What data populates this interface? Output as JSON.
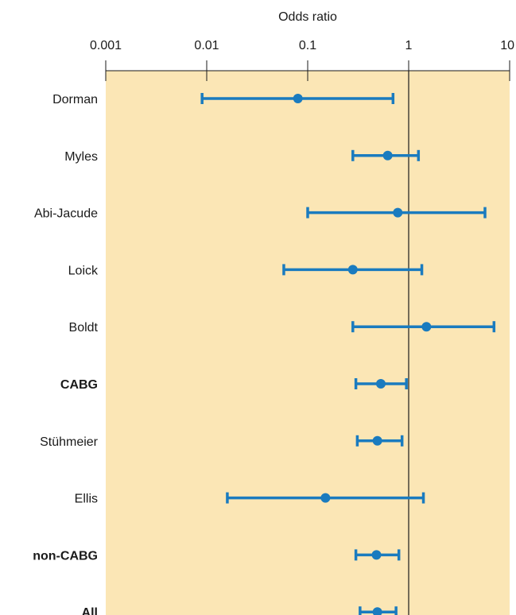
{
  "chart_data": {
    "type": "forest",
    "title": "",
    "xlabel": "Odds ratio",
    "ylabel": "",
    "x_scale": "log",
    "xlim": [
      0.001,
      10
    ],
    "x_ticks": [
      {
        "value": 0.001,
        "label": "0.001"
      },
      {
        "value": 0.01,
        "label": "0.01"
      },
      {
        "value": 0.1,
        "label": "0.1"
      },
      {
        "value": 1,
        "label": "1"
      },
      {
        "value": 10,
        "label": "10"
      }
    ],
    "reference_line": 1,
    "colors": {
      "panel": "#fbe6b5",
      "marker": "#1a7bbf",
      "axis": "#1a1a1a"
    },
    "rows": [
      {
        "label": "Dorman",
        "bold": false,
        "estimate": 0.08,
        "lower": 0.009,
        "upper": 0.7
      },
      {
        "label": "Myles",
        "bold": false,
        "estimate": 0.62,
        "lower": 0.28,
        "upper": 1.25
      },
      {
        "label": "Abi-Jacude",
        "bold": false,
        "estimate": 0.78,
        "lower": 0.1,
        "upper": 5.7
      },
      {
        "label": "Loick",
        "bold": false,
        "estimate": 0.28,
        "lower": 0.058,
        "upper": 1.35
      },
      {
        "label": "Boldt",
        "bold": false,
        "estimate": 1.5,
        "lower": 0.28,
        "upper": 7.0
      },
      {
        "label": "CABG",
        "bold": true,
        "estimate": 0.53,
        "lower": 0.3,
        "upper": 0.95
      },
      {
        "label": "Stühmeier",
        "bold": false,
        "estimate": 0.49,
        "lower": 0.31,
        "upper": 0.86
      },
      {
        "label": "Ellis",
        "bold": false,
        "estimate": 0.15,
        "lower": 0.016,
        "upper": 1.4
      },
      {
        "label": "non-CABG",
        "bold": true,
        "estimate": 0.48,
        "lower": 0.3,
        "upper": 0.8
      },
      {
        "label": "All",
        "bold": true,
        "estimate": 0.49,
        "lower": 0.33,
        "upper": 0.75
      }
    ]
  }
}
